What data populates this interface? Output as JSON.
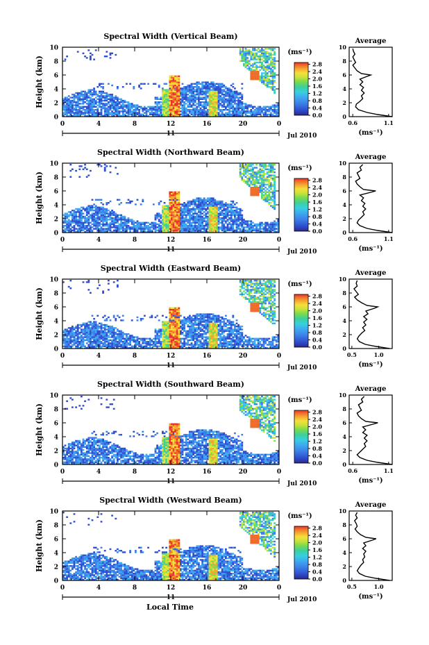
{
  "figure": {
    "xlabel": "Local Time",
    "date_label": "Jul 2010",
    "day_label": "11",
    "ylabel": "Height (km)",
    "unit_label": "(ms⁻¹)",
    "avg_title": "Average",
    "avg_xlabel": "(ms⁻¹)"
  },
  "colors": {
    "scale": [
      "#2a2a8c",
      "#2f4fcf",
      "#3c7fe8",
      "#3fa9f0",
      "#36d0e0",
      "#3ecf9a",
      "#7ddc4a",
      "#c9e23a",
      "#f4e03a",
      "#f7a531",
      "#f06a2a",
      "#e8312a"
    ]
  },
  "chart_data": [
    {
      "type": "heatmap",
      "title": "Spectral Width (Vertical Beam)",
      "ylabel": "Height (km)",
      "x_ticks": [
        "0",
        "4",
        "8",
        "12",
        "16",
        "20",
        "0"
      ],
      "y_ticks": [
        "0",
        "2",
        "4",
        "6",
        "8",
        "10"
      ],
      "xlim": [
        0,
        24
      ],
      "ylim": [
        0,
        10
      ],
      "colorbar": {
        "ticks": [
          "0.0",
          "0.4",
          "0.8",
          "1.2",
          "1.6",
          "2.0",
          "2.4",
          "2.8"
        ],
        "range": [
          0,
          2.9
        ]
      },
      "average": {
        "x_ticks": [
          "0.6",
          "1.1"
        ],
        "xlim": [
          0.55,
          1.15
        ],
        "profile": [
          [
            0.0,
            1.15
          ],
          [
            0.3,
            0.95
          ],
          [
            0.6,
            0.8
          ],
          [
            1.0,
            0.68
          ],
          [
            1.4,
            0.64
          ],
          [
            1.8,
            0.65
          ],
          [
            2.2,
            0.7
          ],
          [
            2.6,
            0.74
          ],
          [
            3.0,
            0.72
          ],
          [
            3.4,
            0.76
          ],
          [
            3.8,
            0.72
          ],
          [
            4.2,
            0.75
          ],
          [
            4.6,
            0.7
          ],
          [
            5.0,
            0.74
          ],
          [
            5.4,
            0.7
          ],
          [
            5.8,
            0.8
          ],
          [
            6.0,
            0.85
          ],
          [
            6.2,
            0.72
          ],
          [
            6.6,
            0.66
          ],
          [
            7.0,
            0.63
          ],
          [
            7.4,
            0.6
          ],
          [
            7.8,
            0.64
          ],
          [
            8.2,
            0.62
          ],
          [
            8.6,
            0.6
          ],
          [
            9.0,
            0.63
          ],
          [
            9.4,
            0.61
          ],
          [
            9.8,
            0.6
          ]
        ]
      }
    },
    {
      "type": "heatmap",
      "title": "Spectral Width (Northward Beam)",
      "ylabel": "Height (km)",
      "x_ticks": [
        "0",
        "4",
        "8",
        "12",
        "16",
        "20",
        "0"
      ],
      "y_ticks": [
        "0",
        "2",
        "4",
        "6",
        "8",
        "10"
      ],
      "xlim": [
        0,
        24
      ],
      "ylim": [
        0,
        10
      ],
      "colorbar": {
        "ticks": [
          "0.0",
          "0.4",
          "0.8",
          "1.2",
          "1.6",
          "2.0",
          "2.4",
          "2.8"
        ],
        "range": [
          0,
          2.9
        ]
      },
      "average": {
        "x_ticks": [
          "0.6",
          "1.1"
        ],
        "xlim": [
          0.55,
          1.15
        ],
        "profile": [
          [
            0.0,
            1.15
          ],
          [
            0.3,
            0.95
          ],
          [
            0.6,
            0.8
          ],
          [
            1.0,
            0.7
          ],
          [
            1.4,
            0.66
          ],
          [
            1.8,
            0.68
          ],
          [
            2.2,
            0.72
          ],
          [
            2.6,
            0.76
          ],
          [
            3.0,
            0.74
          ],
          [
            3.4,
            0.78
          ],
          [
            3.8,
            0.74
          ],
          [
            4.2,
            0.77
          ],
          [
            4.6,
            0.72
          ],
          [
            5.0,
            0.75
          ],
          [
            5.4,
            0.7
          ],
          [
            5.8,
            0.85
          ],
          [
            6.0,
            0.92
          ],
          [
            6.2,
            0.75
          ],
          [
            6.6,
            0.7
          ],
          [
            7.0,
            0.66
          ],
          [
            7.4,
            0.64
          ],
          [
            7.8,
            0.7
          ],
          [
            8.2,
            0.68
          ],
          [
            8.6,
            0.66
          ],
          [
            9.0,
            0.72
          ],
          [
            9.4,
            0.7
          ],
          [
            9.8,
            0.74
          ]
        ]
      }
    },
    {
      "type": "heatmap",
      "title": "Spectral Width (Eastward Beam)",
      "ylabel": "Height (km)",
      "x_ticks": [
        "0",
        "4",
        "8",
        "12",
        "16",
        "20",
        "0"
      ],
      "y_ticks": [
        "0",
        "2",
        "4",
        "6",
        "8",
        "10"
      ],
      "xlim": [
        0,
        24
      ],
      "ylim": [
        0,
        10
      ],
      "colorbar": {
        "ticks": [
          "0.0",
          "0.4",
          "0.8",
          "1.2",
          "1.6",
          "2.0",
          "2.4",
          "2.8"
        ],
        "range": [
          0,
          2.9
        ]
      },
      "average": {
        "x_ticks": [
          "0.5",
          "1.0"
        ],
        "xlim": [
          0.45,
          1.25
        ],
        "profile": [
          [
            0.0,
            1.2
          ],
          [
            0.3,
            0.95
          ],
          [
            0.6,
            0.75
          ],
          [
            1.0,
            0.64
          ],
          [
            1.4,
            0.6
          ],
          [
            1.8,
            0.63
          ],
          [
            2.2,
            0.68
          ],
          [
            2.6,
            0.74
          ],
          [
            3.0,
            0.7
          ],
          [
            3.4,
            0.76
          ],
          [
            3.8,
            0.72
          ],
          [
            4.2,
            0.78
          ],
          [
            4.6,
            0.72
          ],
          [
            5.0,
            0.8
          ],
          [
            5.4,
            0.76
          ],
          [
            5.8,
            0.92
          ],
          [
            6.0,
            0.98
          ],
          [
            6.2,
            0.78
          ],
          [
            6.6,
            0.68
          ],
          [
            7.0,
            0.6
          ],
          [
            7.4,
            0.55
          ],
          [
            7.8,
            0.62
          ],
          [
            8.2,
            0.58
          ],
          [
            8.6,
            0.54
          ],
          [
            9.0,
            0.6
          ],
          [
            9.4,
            0.58
          ],
          [
            9.8,
            0.6
          ]
        ]
      }
    },
    {
      "type": "heatmap",
      "title": "Spectral Width (Southward Beam)",
      "ylabel": "Height (km)",
      "x_ticks": [
        "0",
        "4",
        "8",
        "12",
        "16",
        "20",
        "0"
      ],
      "y_ticks": [
        "0",
        "2",
        "4",
        "6",
        "8",
        "10"
      ],
      "xlim": [
        0,
        24
      ],
      "ylim": [
        0,
        10
      ],
      "colorbar": {
        "ticks": [
          "0.0",
          "0.4",
          "0.8",
          "1.2",
          "1.6",
          "2.0",
          "2.4",
          "2.8"
        ],
        "range": [
          0,
          2.9
        ]
      },
      "average": {
        "x_ticks": [
          "0.6",
          "1.1"
        ],
        "xlim": [
          0.55,
          1.15
        ],
        "profile": [
          [
            0.0,
            1.15
          ],
          [
            0.3,
            0.95
          ],
          [
            0.6,
            0.8
          ],
          [
            1.0,
            0.7
          ],
          [
            1.4,
            0.66
          ],
          [
            1.8,
            0.7
          ],
          [
            2.2,
            0.74
          ],
          [
            2.6,
            0.78
          ],
          [
            3.0,
            0.76
          ],
          [
            3.4,
            0.8
          ],
          [
            3.8,
            0.76
          ],
          [
            4.2,
            0.8
          ],
          [
            4.6,
            0.74
          ],
          [
            5.0,
            0.78
          ],
          [
            5.4,
            0.74
          ],
          [
            5.8,
            0.88
          ],
          [
            6.0,
            0.95
          ],
          [
            6.2,
            0.78
          ],
          [
            6.6,
            0.72
          ],
          [
            7.0,
            0.68
          ],
          [
            7.4,
            0.66
          ],
          [
            7.8,
            0.72
          ],
          [
            8.2,
            0.7
          ],
          [
            8.6,
            0.68
          ],
          [
            9.0,
            0.74
          ],
          [
            9.4,
            0.72
          ],
          [
            9.8,
            0.76
          ]
        ]
      }
    },
    {
      "type": "heatmap",
      "title": "Spectral Width (Westward Beam)",
      "ylabel": "Height (km)",
      "x_ticks": [
        "0",
        "4",
        "8",
        "12",
        "16",
        "20",
        "0"
      ],
      "y_ticks": [
        "0",
        "2",
        "4",
        "6",
        "8",
        "10"
      ],
      "xlim": [
        0,
        24
      ],
      "ylim": [
        0,
        10
      ],
      "colorbar": {
        "ticks": [
          "0.0",
          "0.4",
          "0.8",
          "1.2",
          "1.6",
          "2.0",
          "2.4",
          "2.8"
        ],
        "range": [
          0,
          2.9
        ]
      },
      "average": {
        "x_ticks": [
          "0.5",
          "1.0"
        ],
        "xlim": [
          0.45,
          1.25
        ],
        "profile": [
          [
            0.0,
            1.2
          ],
          [
            0.3,
            0.95
          ],
          [
            0.6,
            0.75
          ],
          [
            1.0,
            0.64
          ],
          [
            1.4,
            0.6
          ],
          [
            1.8,
            0.63
          ],
          [
            2.2,
            0.67
          ],
          [
            2.6,
            0.72
          ],
          [
            3.0,
            0.7
          ],
          [
            3.4,
            0.74
          ],
          [
            3.8,
            0.72
          ],
          [
            4.2,
            0.76
          ],
          [
            4.6,
            0.7
          ],
          [
            5.0,
            0.76
          ],
          [
            5.4,
            0.72
          ],
          [
            5.8,
            0.88
          ],
          [
            6.0,
            0.95
          ],
          [
            6.2,
            0.76
          ],
          [
            6.6,
            0.66
          ],
          [
            7.0,
            0.6
          ],
          [
            7.4,
            0.56
          ],
          [
            7.8,
            0.6
          ],
          [
            8.2,
            0.58
          ],
          [
            8.6,
            0.55
          ],
          [
            9.0,
            0.6
          ],
          [
            9.4,
            0.57
          ],
          [
            9.8,
            0.6
          ]
        ]
      }
    }
  ]
}
